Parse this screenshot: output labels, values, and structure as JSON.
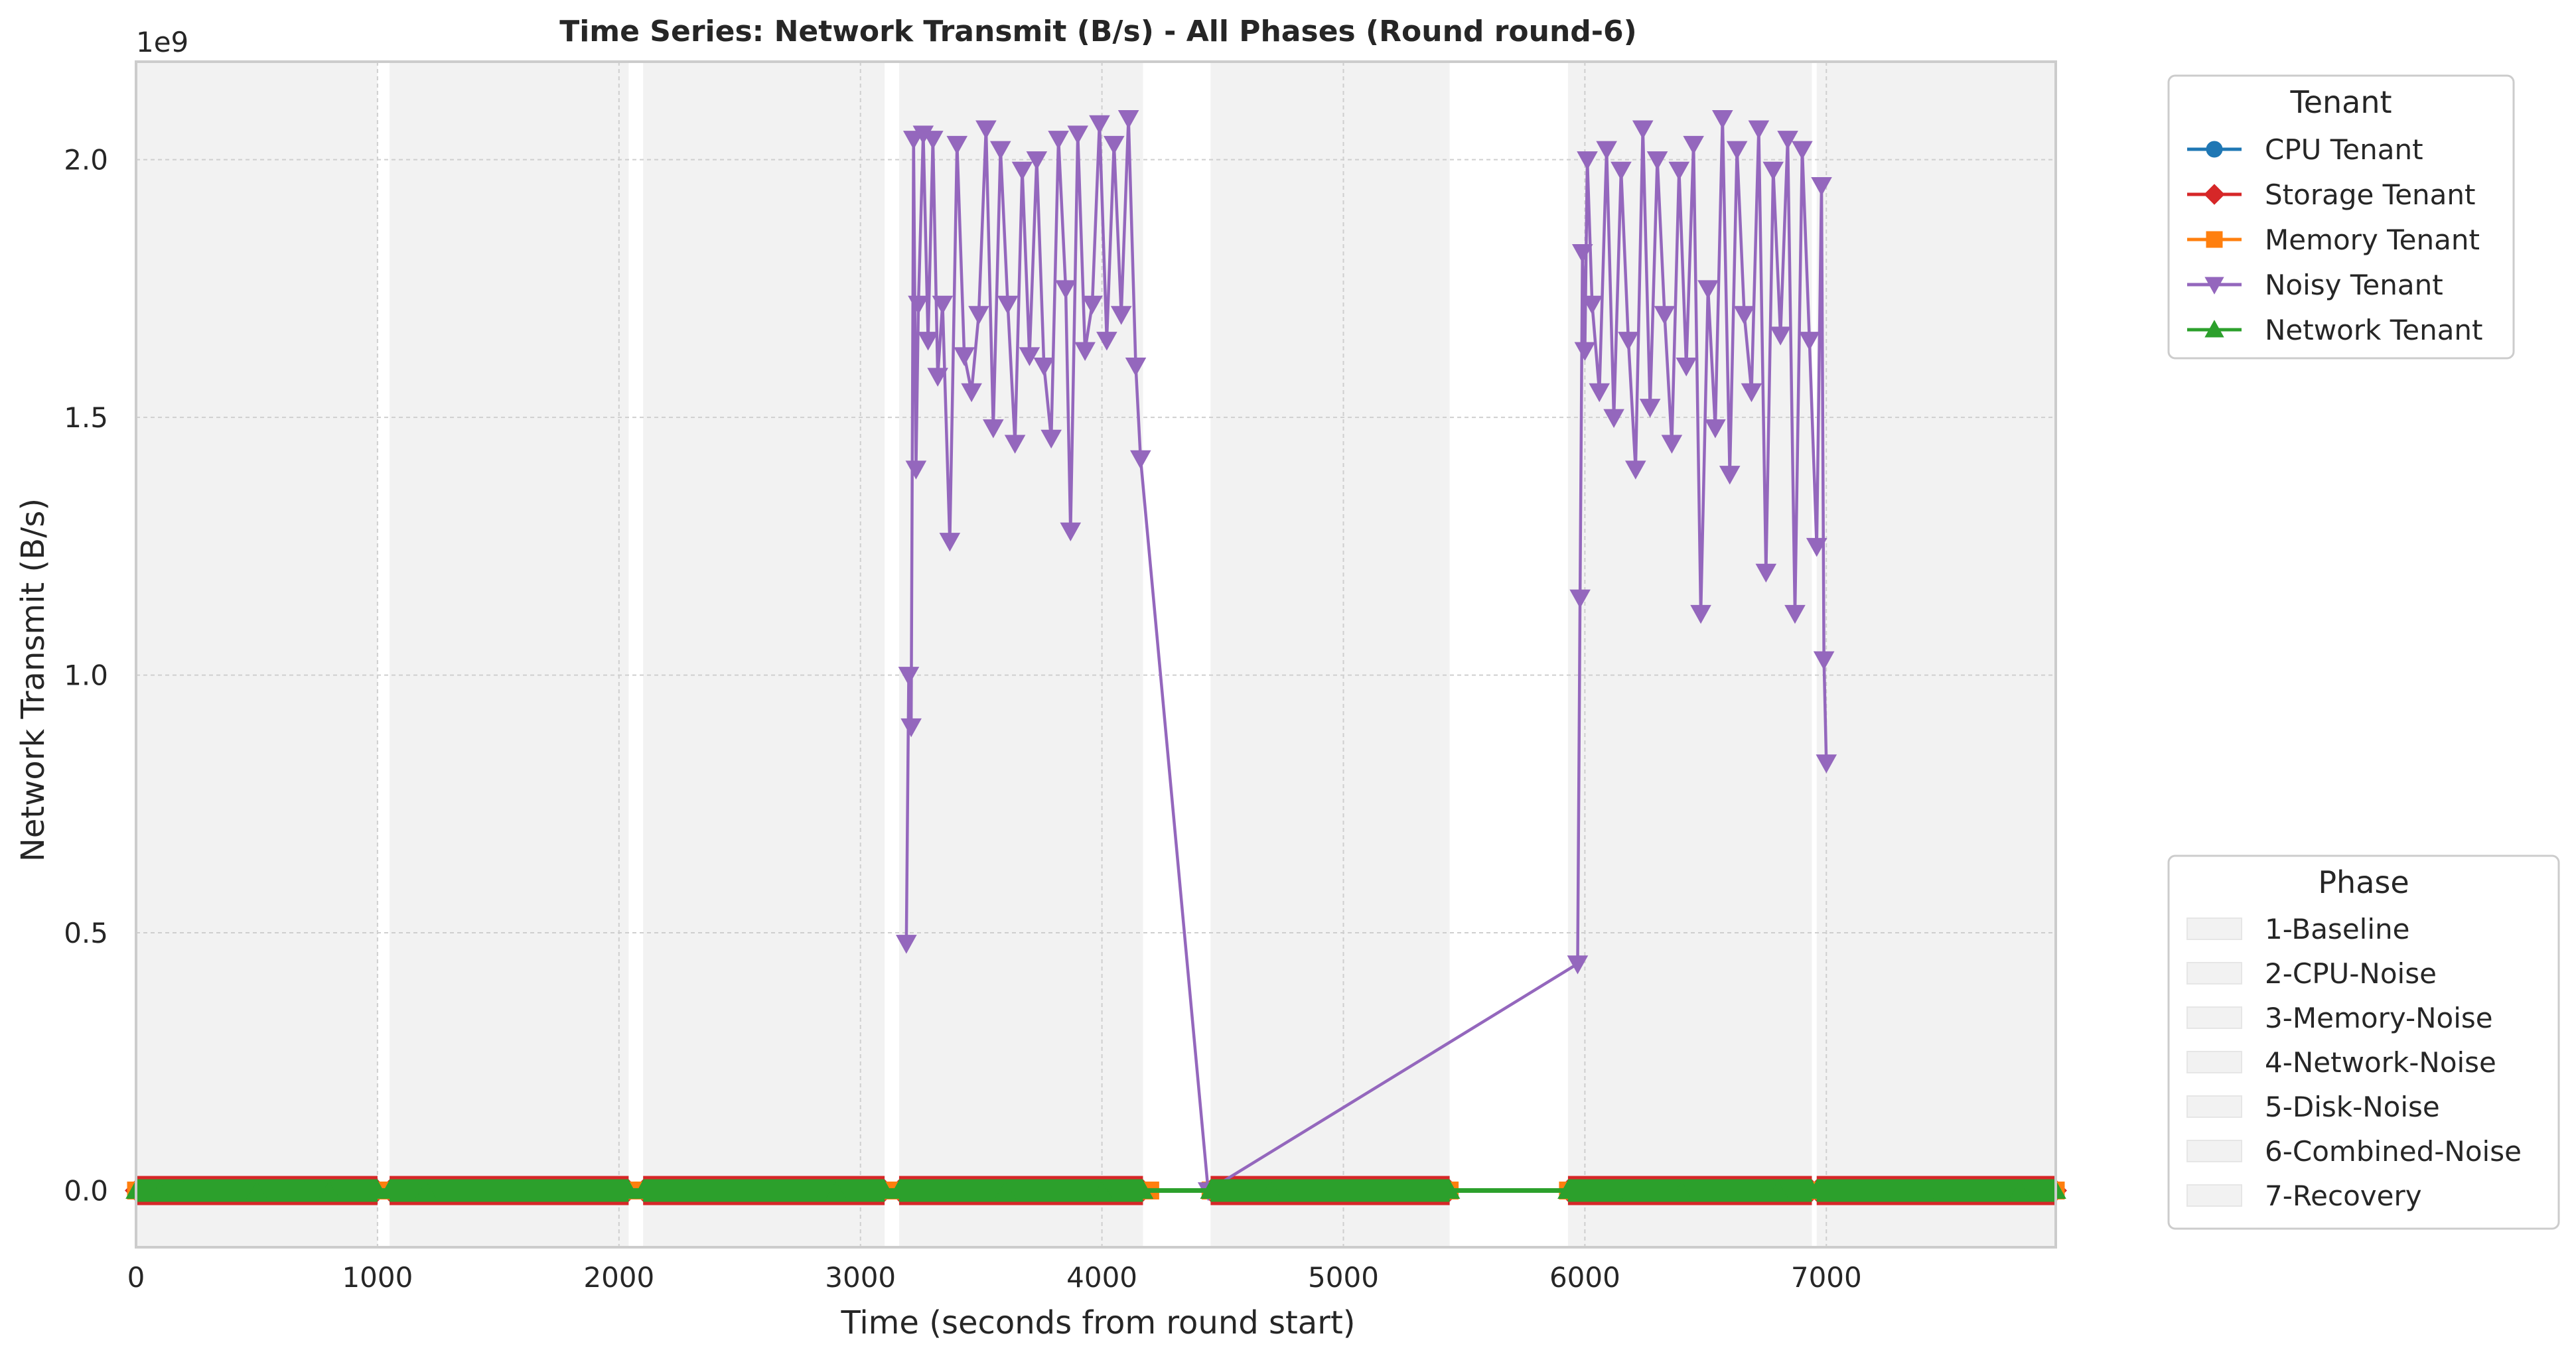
{
  "chart_data": {
    "type": "line",
    "title": "Time Series: Network Transmit (B/s) - All Phases (Round round-6)",
    "xlabel": "Time (seconds from round start)",
    "ylabel": "Network Transmit (B/s)",
    "y_offset_label": "1e9",
    "xlim": [
      0,
      7950
    ],
    "ylim": [
      -0.11,
      2.19
    ],
    "y_multiplier": 1000000000,
    "x_ticks": [
      0,
      1000,
      2000,
      3000,
      4000,
      5000,
      6000,
      7000
    ],
    "y_ticks": [
      0.0,
      0.5,
      1.0,
      1.5,
      2.0
    ],
    "x_tick_labels": [
      "0",
      "1000",
      "2000",
      "3000",
      "4000",
      "5000",
      "6000",
      "7000"
    ],
    "y_tick_labels": [
      "0.0",
      "0.5",
      "1.0",
      "1.5",
      "2.0"
    ],
    "grid": true,
    "phase_bands": [
      [
        0,
        1000
      ],
      [
        1050,
        2040
      ],
      [
        2100,
        3100
      ],
      [
        3160,
        4170
      ],
      [
        4450,
        5440
      ],
      [
        5930,
        6940
      ],
      [
        6960,
        7950
      ]
    ],
    "series": [
      {
        "name": "CPU Tenant",
        "color": "#1f77b4",
        "marker": "circle",
        "x": [
          0,
          100,
          200,
          300,
          400,
          500,
          600,
          700,
          800,
          900,
          1000,
          1050,
          1200,
          1400,
          1600,
          1800,
          2040,
          2100,
          2300,
          2500,
          2700,
          2900,
          3100,
          3160,
          3400,
          3600,
          3800,
          4000,
          4170,
          4450,
          4700,
          4900,
          5100,
          5300,
          5440,
          5930,
          6200,
          6400,
          6600,
          6800,
          6940,
          6960,
          7200,
          7400,
          7600,
          7800,
          7950
        ],
        "y": [
          0,
          0,
          0,
          0,
          0,
          0,
          0,
          0,
          0,
          0,
          0,
          0,
          0,
          0,
          0,
          0,
          0,
          0,
          0,
          0,
          0,
          0,
          0,
          0,
          0,
          0,
          0,
          0,
          0,
          0,
          0,
          0,
          0,
          0,
          0,
          0,
          0,
          0,
          0,
          0,
          0,
          0,
          0,
          0,
          0,
          0,
          0
        ]
      },
      {
        "name": "Storage Tenant",
        "color": "#d62728",
        "marker": "diamond",
        "x": [
          0,
          100,
          200,
          300,
          400,
          500,
          600,
          700,
          800,
          900,
          1000,
          1050,
          1200,
          1400,
          1600,
          1800,
          2040,
          2100,
          2300,
          2500,
          2700,
          2900,
          3100,
          3160,
          3400,
          3600,
          3800,
          4000,
          4170,
          4450,
          4700,
          4900,
          5100,
          5300,
          5440,
          5930,
          6200,
          6400,
          6600,
          6800,
          6940,
          6960,
          7200,
          7400,
          7600,
          7800,
          7950
        ],
        "y": [
          0,
          0,
          0,
          0,
          0,
          0,
          0,
          0,
          0,
          0,
          0,
          0,
          0,
          0,
          0,
          0,
          0,
          0,
          0,
          0,
          0,
          0,
          0,
          0,
          0,
          0,
          0,
          0,
          0,
          0,
          0,
          0,
          0,
          0,
          0,
          0,
          0,
          0,
          0,
          0,
          0,
          0,
          0,
          0,
          0,
          0,
          0
        ]
      },
      {
        "name": "Memory Tenant",
        "color": "#ff7f0e",
        "marker": "square",
        "x": [
          0,
          100,
          200,
          300,
          400,
          500,
          600,
          700,
          800,
          900,
          1000,
          1050,
          1200,
          1400,
          1600,
          1800,
          2040,
          2100,
          2300,
          2500,
          2700,
          2900,
          3100,
          3160,
          3400,
          3600,
          3800,
          4000,
          4200,
          4450,
          4700,
          4900,
          5100,
          5300,
          5440,
          5930,
          6200,
          6400,
          6600,
          6800,
          6940,
          6960,
          7200,
          7400,
          7600,
          7800,
          7950
        ],
        "y": [
          0,
          0,
          0,
          0,
          0,
          0,
          0,
          0,
          0,
          0,
          0,
          0,
          0,
          0,
          0,
          0,
          0,
          0,
          0,
          0,
          0,
          0,
          0,
          0,
          0,
          0,
          0,
          0,
          0,
          0,
          0,
          0,
          0,
          0,
          0,
          0,
          0,
          0,
          0,
          0,
          0,
          0,
          0,
          0,
          0,
          0,
          0
        ]
      },
      {
        "name": "Noisy Tenant",
        "color": "#9467bd",
        "marker": "triangle-down",
        "x": [
          3190,
          3200,
          3210,
          3220,
          3230,
          3240,
          3260,
          3280,
          3300,
          3320,
          3340,
          3370,
          3400,
          3430,
          3460,
          3490,
          3520,
          3550,
          3580,
          3610,
          3640,
          3670,
          3700,
          3730,
          3760,
          3790,
          3820,
          3850,
          3870,
          3900,
          3930,
          3960,
          3990,
          4020,
          4050,
          4080,
          4110,
          4140,
          4160,
          4440,
          5970,
          5980,
          5990,
          6000,
          6010,
          6030,
          6060,
          6090,
          6120,
          6150,
          6180,
          6210,
          6240,
          6270,
          6300,
          6330,
          6360,
          6390,
          6420,
          6450,
          6480,
          6510,
          6540,
          6570,
          6600,
          6630,
          6660,
          6690,
          6720,
          6750,
          6780,
          6810,
          6840,
          6870,
          6900,
          6930,
          6960,
          6980,
          6990,
          7000
        ],
        "y": [
          0.48,
          1.0,
          0.9,
          2.04,
          1.4,
          1.72,
          2.05,
          1.65,
          2.04,
          1.58,
          1.72,
          1.26,
          2.03,
          1.62,
          1.55,
          1.7,
          2.06,
          1.48,
          2.02,
          1.72,
          1.45,
          1.98,
          1.62,
          2.0,
          1.6,
          1.46,
          2.04,
          1.75,
          1.28,
          2.05,
          1.63,
          1.72,
          2.07,
          1.65,
          2.03,
          1.7,
          2.08,
          1.6,
          1.42,
          0.0,
          0.44,
          1.15,
          1.82,
          1.63,
          2.0,
          1.72,
          1.55,
          2.02,
          1.5,
          1.98,
          1.65,
          1.4,
          2.06,
          1.52,
          2.0,
          1.7,
          1.45,
          1.98,
          1.6,
          2.03,
          1.12,
          1.75,
          1.48,
          2.08,
          1.39,
          2.02,
          1.7,
          1.55,
          2.06,
          1.2,
          1.98,
          1.66,
          2.04,
          1.12,
          2.02,
          1.65,
          1.25,
          1.95,
          1.03,
          0.83
        ]
      },
      {
        "name": "Network Tenant",
        "color": "#2ca02c",
        "marker": "triangle-up",
        "x": [
          0,
          100,
          200,
          300,
          400,
          500,
          600,
          700,
          800,
          900,
          1000,
          1050,
          1200,
          1400,
          1600,
          1800,
          2040,
          2100,
          2300,
          2500,
          2700,
          2900,
          3100,
          3160,
          3400,
          3600,
          3800,
          4000,
          4170,
          4450,
          4700,
          4900,
          5100,
          5300,
          5440,
          5930,
          6200,
          6400,
          6600,
          6800,
          6940,
          6960,
          7200,
          7400,
          7600,
          7800,
          7950
        ],
        "y": [
          0,
          0,
          0,
          0,
          0,
          0,
          0,
          0,
          0,
          0,
          0,
          0,
          0,
          0,
          0,
          0,
          0,
          0,
          0,
          0,
          0,
          0,
          0,
          0,
          0,
          0,
          0,
          0,
          0,
          0,
          0,
          0,
          0,
          0,
          0,
          0,
          0,
          0,
          0,
          0,
          0,
          0,
          0,
          0,
          0,
          0,
          0
        ]
      }
    ],
    "legend_tenant": {
      "title": "Tenant",
      "placement": "top-right-outside",
      "entries": [
        "CPU Tenant",
        "Storage Tenant",
        "Memory Tenant",
        "Noisy Tenant",
        "Network Tenant"
      ]
    },
    "legend_phase": {
      "title": "Phase",
      "placement": "bottom-right-outside",
      "entries": [
        "1-Baseline",
        "2-CPU-Noise",
        "3-Memory-Noise",
        "4-Network-Noise",
        "5-Disk-Noise",
        "6-Combined-Noise",
        "7-Recovery"
      ]
    }
  }
}
